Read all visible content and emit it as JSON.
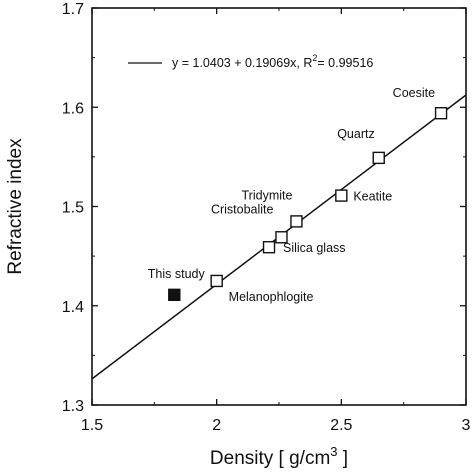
{
  "chart_data": {
    "type": "scatter",
    "xlabel": "Density [ g/cm",
    "xlabel_sup": "3",
    "xlabel_end": " ]",
    "ylabel": "Refractive index",
    "xlim": [
      1.5,
      3.0
    ],
    "ylim": [
      1.3,
      1.7
    ],
    "x_ticks": [
      1.5,
      2.0,
      2.5,
      3.0
    ],
    "x_tick_labels": [
      "1.5",
      "2",
      "2.5",
      "3"
    ],
    "y_ticks": [
      1.3,
      1.4,
      1.5,
      1.6,
      1.7
    ],
    "y_tick_labels": [
      "1.3",
      "1.4",
      "1.5",
      "1.6",
      "1.7"
    ],
    "grid": false,
    "fit": {
      "intercept": 1.0403,
      "slope": 0.19069,
      "label_main": "y = 1.0403 + 0.19069x,  R",
      "label_sup": "2",
      "label_end": "= 0.99516"
    },
    "points": [
      {
        "label": "Melanophlogite",
        "x": 2.0,
        "y": 1.425,
        "filled": false
      },
      {
        "label": "Silica glass",
        "x": 2.21,
        "y": 1.459,
        "filled": false
      },
      {
        "label": "Cristobalite",
        "x": 2.26,
        "y": 1.469,
        "filled": false
      },
      {
        "label": "Tridymite",
        "x": 2.32,
        "y": 1.485,
        "filled": false
      },
      {
        "label": "Keatite",
        "x": 2.5,
        "y": 1.511,
        "filled": false
      },
      {
        "label": "Quartz",
        "x": 2.65,
        "y": 1.549,
        "filled": false
      },
      {
        "label": "Coesite",
        "x": 2.9,
        "y": 1.594,
        "filled": false
      },
      {
        "label": "This study",
        "x": 1.83,
        "y": 1.411,
        "filled": true
      }
    ]
  }
}
